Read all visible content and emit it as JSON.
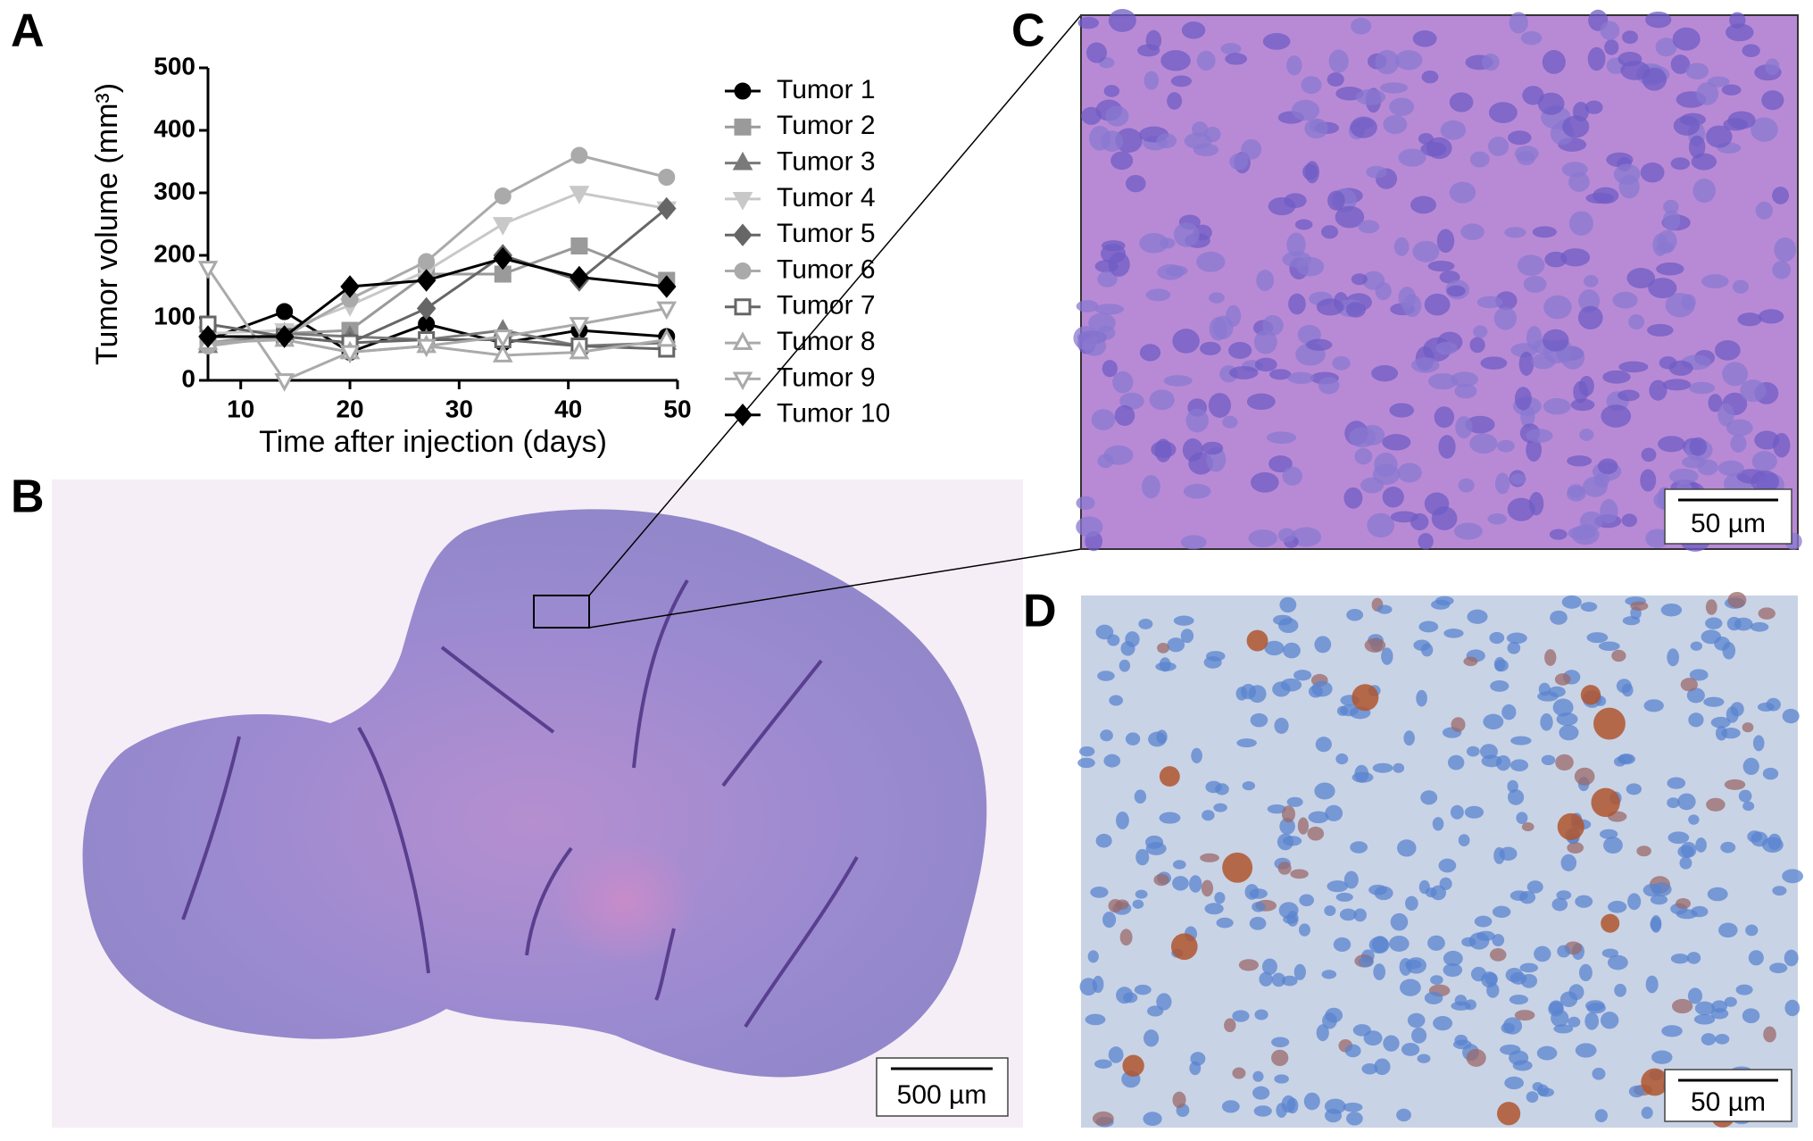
{
  "chart_data": {
    "type": "line",
    "xlabel": "Time after injection (days)",
    "ylabel": "Tumor volume (mm³)",
    "x": [
      7,
      14,
      20,
      27,
      34,
      41,
      49
    ],
    "xlim": [
      7,
      50
    ],
    "xticks": [
      10,
      20,
      30,
      40,
      50
    ],
    "ylim": [
      0,
      500
    ],
    "yticks": [
      0,
      100,
      200,
      300,
      400,
      500
    ],
    "series": [
      {
        "name": "Tumor 1",
        "color": "#000000",
        "marker": "circle",
        "filled": true,
        "values": [
          65,
          110,
          45,
          90,
          60,
          80,
          70
        ]
      },
      {
        "name": "Tumor 2",
        "color": "#9a9a9a",
        "marker": "square",
        "filled": true,
        "values": [
          60,
          75,
          80,
          170,
          170,
          215,
          160
        ]
      },
      {
        "name": "Tumor 3",
        "color": "#7a7a7a",
        "marker": "triangle",
        "filled": true,
        "values": [
          55,
          75,
          70,
          65,
          80,
          55,
          60
        ]
      },
      {
        "name": "Tumor 4",
        "color": "#c8c8c8",
        "marker": "triangle-down",
        "filled": true,
        "values": [
          75,
          80,
          120,
          175,
          250,
          300,
          275
        ]
      },
      {
        "name": "Tumor 5",
        "color": "#666666",
        "marker": "diamond",
        "filled": true,
        "values": [
          70,
          70,
          60,
          115,
          200,
          160,
          275
        ]
      },
      {
        "name": "Tumor 6",
        "color": "#aaaaaa",
        "marker": "circle",
        "filled": true,
        "values": [
          55,
          70,
          130,
          190,
          295,
          360,
          325
        ]
      },
      {
        "name": "Tumor 7",
        "color": "#666666",
        "marker": "square",
        "filled": false,
        "values": [
          90,
          70,
          60,
          65,
          65,
          55,
          50
        ]
      },
      {
        "name": "Tumor 8",
        "color": "#aaaaaa",
        "marker": "triangle",
        "filled": false,
        "values": [
          60,
          65,
          45,
          55,
          40,
          45,
          65
        ]
      },
      {
        "name": "Tumor 9",
        "color": "#aaaaaa",
        "marker": "triangle-down",
        "filled": false,
        "values": [
          180,
          0,
          45,
          55,
          70,
          90,
          115
        ]
      },
      {
        "name": "Tumor 10",
        "color": "#000000",
        "marker": "diamond",
        "filled": true,
        "values": [
          70,
          70,
          150,
          160,
          195,
          165,
          150
        ]
      }
    ]
  },
  "panels": {
    "a": "A",
    "b": "B",
    "c": "C",
    "d": "D"
  },
  "scale_bars": {
    "b": "500 µm",
    "c": "50 µm",
    "d": "50 µm"
  }
}
